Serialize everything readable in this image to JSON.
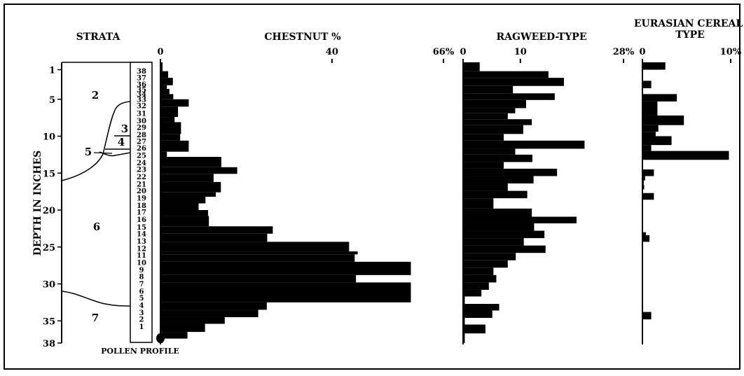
{
  "chart_data": {
    "type": "bar",
    "depth_axis": {
      "label": "DEPTH IN INCHES",
      "ticks": [
        1,
        5,
        10,
        15,
        20,
        25,
        30,
        35,
        38
      ]
    },
    "strata": {
      "title": "STRATA",
      "labels": [
        "2",
        "3",
        "4",
        "5",
        "6",
        "7"
      ]
    },
    "pollen_profile": {
      "label": "POLLEN PROFILE",
      "sample_numbers": [
        "38",
        "37",
        "36",
        "35",
        "34",
        "33",
        "32",
        "31",
        "30",
        "29",
        "28",
        "27",
        "26",
        "25",
        "24",
        "23",
        "22",
        "21",
        "20",
        "19",
        "18",
        "17",
        "16",
        "15",
        "14",
        "13",
        "12",
        "11",
        "10",
        "9",
        "8",
        "7",
        "6",
        "5",
        "4",
        "3",
        "2",
        "1"
      ],
      "sample_depths": [
        1.2,
        2.1,
        3.0,
        3.7,
        4.3,
        5.0,
        5.9,
        6.9,
        7.9,
        8.8,
        9.8,
        10.7,
        11.6,
        12.6,
        13.6,
        14.5,
        15.5,
        16.5,
        17.4,
        18.4,
        19.4,
        20.3,
        21.3,
        22.3,
        23.2,
        24.2,
        25.2,
        26.1,
        27.1,
        28.1,
        29.0,
        30.0,
        31.0,
        31.9,
        32.9,
        33.9,
        34.8,
        35.8
      ]
    },
    "series": [
      {
        "name": "CHESTNUT %",
        "scale_max": 66,
        "tick_labels": [
          "0",
          "40",
          "66%"
        ],
        "ticks": [
          0,
          40,
          66
        ],
        "bins": [
          [
            0.0,
            1.2,
            0.5
          ],
          [
            1.2,
            2.1,
            1.8
          ],
          [
            2.1,
            3.1,
            2.9
          ],
          [
            3.1,
            3.6,
            1.5
          ],
          [
            3.6,
            4.3,
            2.1
          ],
          [
            4.3,
            5.0,
            3.0
          ],
          [
            5.0,
            6.0,
            6.6
          ],
          [
            6.0,
            7.4,
            4.1
          ],
          [
            7.4,
            8.1,
            3.3
          ],
          [
            8.1,
            9.7,
            4.8
          ],
          [
            9.7,
            10.6,
            4.6
          ],
          [
            10.6,
            12.1,
            6.6
          ],
          [
            12.1,
            12.8,
            1.5
          ],
          [
            12.8,
            14.2,
            14.2
          ],
          [
            14.2,
            15.1,
            17.9
          ],
          [
            15.1,
            16.2,
            12.4
          ],
          [
            16.2,
            17.6,
            14.1
          ],
          [
            17.6,
            18.2,
            12.9
          ],
          [
            18.2,
            19.1,
            10.5
          ],
          [
            19.1,
            20.0,
            8.9
          ],
          [
            20.0,
            20.8,
            11.1
          ],
          [
            20.8,
            22.2,
            11.3
          ],
          [
            22.2,
            23.2,
            26.2
          ],
          [
            23.2,
            24.3,
            24.9
          ],
          [
            24.3,
            25.6,
            44.0
          ],
          [
            25.6,
            26.0,
            46.0
          ],
          [
            26.0,
            27.0,
            45.3
          ],
          [
            27.0,
            28.8,
            58.4
          ],
          [
            28.8,
            29.8,
            45.6
          ],
          [
            29.8,
            32.5,
            58.4
          ],
          [
            32.5,
            33.5,
            24.8
          ],
          [
            33.5,
            34.5,
            22.8
          ],
          [
            34.5,
            35.4,
            15.0
          ],
          [
            35.4,
            36.5,
            10.4
          ],
          [
            36.5,
            37.4,
            6.3
          ],
          [
            37.4,
            38.0,
            0.5
          ]
        ]
      },
      {
        "name": "RAGWEED-TYPE",
        "scale_max": 28,
        "tick_labels": [
          "0",
          "10",
          "28%"
        ],
        "ticks": [
          0,
          10,
          28
        ],
        "bins": [
          [
            0.0,
            1.2,
            2.9
          ],
          [
            1.2,
            2.1,
            14.9
          ],
          [
            2.1,
            3.2,
            17.6
          ],
          [
            3.2,
            4.2,
            8.7
          ],
          [
            4.2,
            5.1,
            16.0
          ],
          [
            5.1,
            6.2,
            11.0
          ],
          [
            6.2,
            6.9,
            9.1
          ],
          [
            6.9,
            7.7,
            7.8
          ],
          [
            7.7,
            8.5,
            12.0
          ],
          [
            8.5,
            9.7,
            10.5
          ],
          [
            9.7,
            10.6,
            7.1
          ],
          [
            10.6,
            11.7,
            21.2
          ],
          [
            11.7,
            12.5,
            9.1
          ],
          [
            12.5,
            13.5,
            12.1
          ],
          [
            13.5,
            14.4,
            7.1
          ],
          [
            14.4,
            15.4,
            16.4
          ],
          [
            15.4,
            16.4,
            12.3
          ],
          [
            16.4,
            17.4,
            7.8
          ],
          [
            17.4,
            18.4,
            11.2
          ],
          [
            18.4,
            19.8,
            5.3
          ],
          [
            19.8,
            20.9,
            12.0
          ],
          [
            20.9,
            21.8,
            19.8
          ],
          [
            21.8,
            22.8,
            12.4
          ],
          [
            22.8,
            23.8,
            14.2
          ],
          [
            23.8,
            24.8,
            10.6
          ],
          [
            24.8,
            25.8,
            14.4
          ],
          [
            25.8,
            26.8,
            9.2
          ],
          [
            26.8,
            27.8,
            7.8
          ],
          [
            27.8,
            28.8,
            5.3
          ],
          [
            28.8,
            29.8,
            5.8
          ],
          [
            29.8,
            30.8,
            4.5
          ],
          [
            30.8,
            31.7,
            3.2
          ],
          [
            31.7,
            32.7,
            0.3
          ],
          [
            32.7,
            33.6,
            6.3
          ],
          [
            33.6,
            34.6,
            5.1
          ],
          [
            34.6,
            35.5,
            0.3
          ],
          [
            35.5,
            36.7,
            3.9
          ],
          [
            36.7,
            38.0,
            0.3
          ]
        ]
      },
      {
        "name": "EURASIAN CEREAL TYPE",
        "scale_max": 10,
        "tick_labels": [
          "0",
          "10%"
        ],
        "ticks": [
          0,
          10
        ],
        "bins": [
          [
            0.0,
            1.0,
            2.6
          ],
          [
            1.0,
            2.5,
            0.0
          ],
          [
            2.5,
            3.5,
            1.0
          ],
          [
            3.5,
            4.3,
            0.0
          ],
          [
            4.3,
            5.3,
            3.9
          ],
          [
            5.3,
            7.2,
            1.7
          ],
          [
            7.2,
            8.5,
            4.7
          ],
          [
            8.5,
            9.4,
            1.8
          ],
          [
            9.4,
            10.0,
            1.5
          ],
          [
            10.0,
            11.2,
            3.3
          ],
          [
            11.2,
            12.0,
            1.0
          ],
          [
            12.0,
            13.2,
            9.8
          ],
          [
            13.2,
            14.5,
            0.0
          ],
          [
            14.5,
            15.4,
            1.3
          ],
          [
            15.4,
            16.0,
            0.3
          ],
          [
            16.0,
            16.6,
            0.15
          ],
          [
            16.6,
            17.2,
            0.2
          ],
          [
            17.2,
            17.7,
            0.0
          ],
          [
            17.7,
            18.6,
            1.3
          ],
          [
            18.6,
            23.0,
            0.0
          ],
          [
            23.0,
            23.4,
            0.4
          ],
          [
            23.4,
            24.3,
            0.8
          ],
          [
            24.3,
            33.8,
            0.0
          ],
          [
            33.8,
            34.8,
            1.0
          ],
          [
            34.8,
            38.0,
            0.0
          ]
        ]
      }
    ]
  }
}
